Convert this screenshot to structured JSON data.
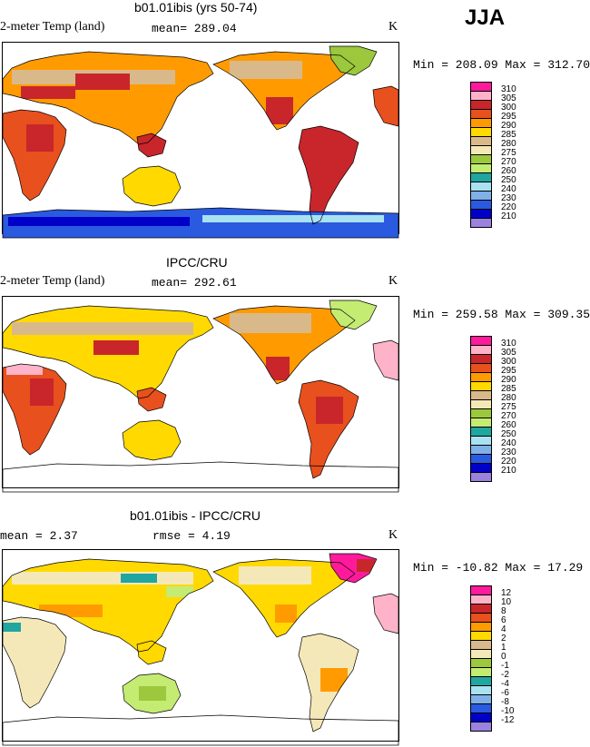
{
  "season": "JJA",
  "panels": [
    {
      "title": "b01.01ibis (yrs 50-74)",
      "variable": "2-meter Temp (land)",
      "stat1": "mean= 289.04",
      "stat2": "",
      "units": "K",
      "minmax": "Min = 208.09 Max = 312.70",
      "legend": {
        "labels": [
          "310",
          "305",
          "300",
          "295",
          "290",
          "285",
          "280",
          "275",
          "270",
          "260",
          "250",
          "240",
          "230",
          "220",
          "210"
        ],
        "colors": [
          "#ff1a9c",
          "#ffb3c8",
          "#c8262b",
          "#e8501e",
          "#ff9b00",
          "#ffd900",
          "#d9b98a",
          "#f5e8b8",
          "#9bc83c",
          "#c4eb72",
          "#1fa6a0",
          "#a8e2f0",
          "#7fb0e8",
          "#2a5ae0",
          "#0000c8",
          "#9b82e0"
        ]
      }
    },
    {
      "title": "IPCC/CRU",
      "variable": "2-meter Temp (land)",
      "stat1": "mean= 292.61",
      "stat2": "",
      "units": "K",
      "minmax": "Min = 259.58 Max = 309.35",
      "legend": {
        "labels": [
          "310",
          "305",
          "300",
          "295",
          "290",
          "285",
          "280",
          "275",
          "270",
          "260",
          "250",
          "240",
          "230",
          "220",
          "210"
        ],
        "colors": [
          "#ff1a9c",
          "#ffb3c8",
          "#c8262b",
          "#e8501e",
          "#ff9b00",
          "#ffd900",
          "#d9b98a",
          "#f5e8b8",
          "#9bc83c",
          "#c4eb72",
          "#1fa6a0",
          "#a8e2f0",
          "#7fb0e8",
          "#2a5ae0",
          "#0000c8",
          "#9b82e0"
        ]
      }
    },
    {
      "title": "b01.01ibis - IPCC/CRU",
      "variable": "",
      "stat1": "mean =    2.37",
      "stat2": "rmse =    4.19",
      "units": "K",
      "minmax": "Min = -10.82 Max =  17.29",
      "legend": {
        "labels": [
          "12",
          "10",
          "8",
          "6",
          "4",
          "2",
          "1",
          "0",
          "-1",
          "-2",
          "-4",
          "-6",
          "-8",
          "-10",
          "-12"
        ],
        "colors": [
          "#ff1a9c",
          "#ffb3c8",
          "#c8262b",
          "#e8501e",
          "#ff9b00",
          "#ffd900",
          "#d9b98a",
          "#f5e8b8",
          "#9bc83c",
          "#c4eb72",
          "#1fa6a0",
          "#a8e2f0",
          "#7fb0e8",
          "#2a5ae0",
          "#0000c8",
          "#9b82e0"
        ]
      }
    }
  ]
}
